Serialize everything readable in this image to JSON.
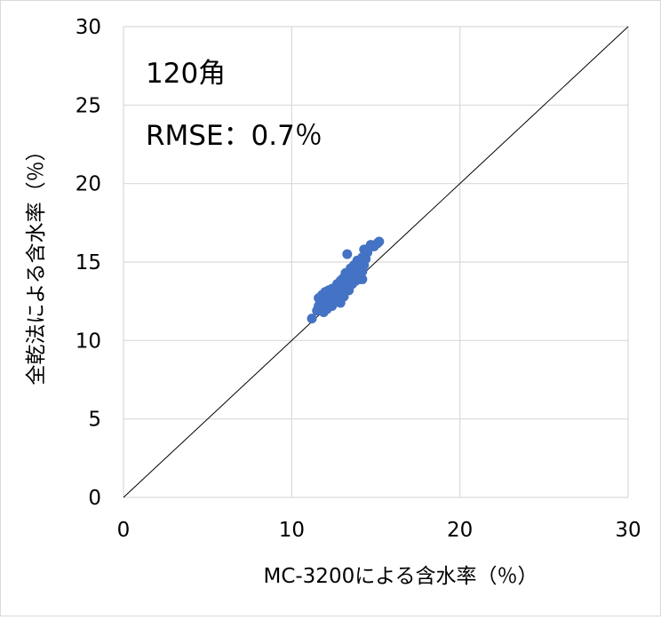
{
  "chart_data": {
    "type": "scatter",
    "annotations": [
      "120角",
      "RMSE：0.7％"
    ],
    "xlabel": "MC-3200による含水率（％）",
    "ylabel": "全乾法による含水率（％）",
    "xlim": [
      0,
      30
    ],
    "ylim": [
      0,
      30
    ],
    "x_ticks": [
      0,
      10,
      20,
      30
    ],
    "y_ticks": [
      0,
      5,
      10,
      15,
      20,
      25,
      30
    ],
    "grid": true,
    "reference_line": {
      "from": [
        0,
        0
      ],
      "to": [
        30,
        30
      ]
    },
    "colors": {
      "points": "#4472c4",
      "grid": "#d9d9d9",
      "line": "#000000"
    },
    "points": [
      [
        11.2,
        11.4
      ],
      [
        11.5,
        11.9
      ],
      [
        11.6,
        12.2
      ],
      [
        11.7,
        12.5
      ],
      [
        11.6,
        12.7
      ],
      [
        11.8,
        12.9
      ],
      [
        11.9,
        12.1
      ],
      [
        12.0,
        12.6
      ],
      [
        12.0,
        13.1
      ],
      [
        12.1,
        12.3
      ],
      [
        12.2,
        12.8
      ],
      [
        12.3,
        12.4
      ],
      [
        12.3,
        13.0
      ],
      [
        12.4,
        12.2
      ],
      [
        12.4,
        13.3
      ],
      [
        12.5,
        12.7
      ],
      [
        12.5,
        13.1
      ],
      [
        12.6,
        12.5
      ],
      [
        12.6,
        13.4
      ],
      [
        12.7,
        12.9
      ],
      [
        12.7,
        13.6
      ],
      [
        12.8,
        12.6
      ],
      [
        12.8,
        13.2
      ],
      [
        12.9,
        13.8
      ],
      [
        12.9,
        12.4
      ],
      [
        13.0,
        13.0
      ],
      [
        13.0,
        13.5
      ],
      [
        13.1,
        14.0
      ],
      [
        13.1,
        12.8
      ],
      [
        13.2,
        13.3
      ],
      [
        13.2,
        14.3
      ],
      [
        13.3,
        13.7
      ],
      [
        13.3,
        15.5
      ],
      [
        13.4,
        14.1
      ],
      [
        13.4,
        13.2
      ],
      [
        13.5,
        14.6
      ],
      [
        13.5,
        13.9
      ],
      [
        13.6,
        14.4
      ],
      [
        13.6,
        13.6
      ],
      [
        13.7,
        14.8
      ],
      [
        13.7,
        14.0
      ],
      [
        13.8,
        14.2
      ],
      [
        13.8,
        13.8
      ],
      [
        13.9,
        14.7
      ],
      [
        13.9,
        14.3
      ],
      [
        14.0,
        14.9
      ],
      [
        14.0,
        13.9
      ],
      [
        14.1,
        14.5
      ],
      [
        14.1,
        15.0
      ],
      [
        14.2,
        14.4
      ],
      [
        14.2,
        15.3
      ],
      [
        14.3,
        14.8
      ],
      [
        14.3,
        15.8
      ],
      [
        14.4,
        15.2
      ],
      [
        14.5,
        15.6
      ],
      [
        14.6,
        15.9
      ],
      [
        14.7,
        16.1
      ],
      [
        14.9,
        16.0
      ],
      [
        15.1,
        16.2
      ],
      [
        15.2,
        16.3
      ],
      [
        12.1,
        12.0
      ],
      [
        12.4,
        12.9
      ],
      [
        12.7,
        13.3
      ],
      [
        13.0,
        13.9
      ],
      [
        13.3,
        14.2
      ],
      [
        13.6,
        14.6
      ],
      [
        13.9,
        15.1
      ],
      [
        14.2,
        13.9
      ],
      [
        12.2,
        13.2
      ],
      [
        11.9,
        11.8
      ]
    ]
  }
}
